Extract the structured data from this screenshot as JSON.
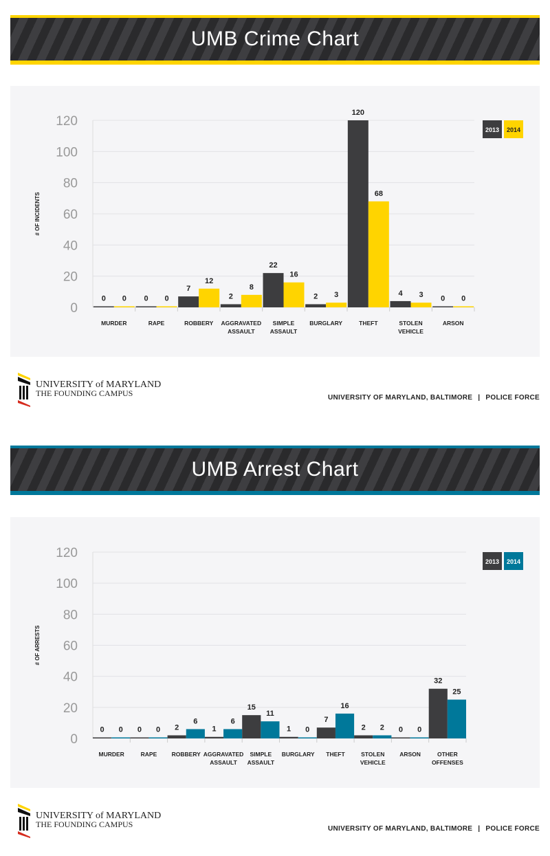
{
  "logo": {
    "line1": "UNIVERSITY of MARYLAND",
    "line2": "THE FOUNDING CAMPUS"
  },
  "footer": {
    "org": "UNIVERSITY OF MARYLAND, BALTIMORE",
    "separator": "|",
    "unit": "POLICE FORCE"
  },
  "chart_data": [
    {
      "type": "bar",
      "title": "UMB Crime Chart",
      "ylabel": "# OF INCIDENTS",
      "ylim": [
        0,
        120
      ],
      "yticks": [
        0,
        20,
        40,
        60,
        80,
        100,
        120
      ],
      "grid": true,
      "legend": "top-right",
      "accent": "#ffd400",
      "categories": [
        "MURDER",
        "RAPE",
        "ROBBERY",
        "AGGRAVATED ASSAULT",
        "SIMPLE ASSAULT",
        "BURGLARY",
        "THEFT",
        "STOLEN VEHICLE",
        "ARSON"
      ],
      "series": [
        {
          "name": "2013",
          "color": "#3d3d3f",
          "values": [
            0,
            0,
            7,
            2,
            22,
            2,
            120,
            4,
            0
          ]
        },
        {
          "name": "2014",
          "color": "#ffd400",
          "values": [
            0,
            0,
            12,
            8,
            16,
            3,
            68,
            3,
            0
          ]
        }
      ]
    },
    {
      "type": "bar",
      "title": "UMB Arrest Chart",
      "ylabel": "# OF ARRESTS",
      "ylim": [
        0,
        120
      ],
      "yticks": [
        0,
        20,
        40,
        60,
        80,
        100,
        120
      ],
      "grid": true,
      "legend": "top-right",
      "accent": "#00789a",
      "categories": [
        "MURDER",
        "RAPE",
        "ROBBERY",
        "AGGRAVATED ASSAULT",
        "SIMPLE ASSAULT",
        "BURGLARY",
        "THEFT",
        "STOLEN VEHICLE",
        "ARSON",
        "OTHER OFFENSES"
      ],
      "series": [
        {
          "name": "2013",
          "color": "#3d3d3f",
          "values": [
            0,
            0,
            2,
            1,
            15,
            1,
            7,
            2,
            0,
            32
          ]
        },
        {
          "name": "2014",
          "color": "#00789a",
          "values": [
            0,
            0,
            6,
            6,
            11,
            0,
            16,
            2,
            0,
            25
          ]
        }
      ]
    }
  ]
}
